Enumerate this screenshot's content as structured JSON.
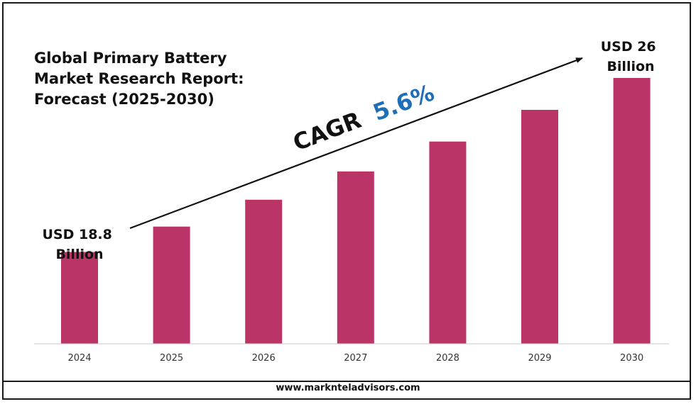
{
  "chart_data": {
    "type": "bar",
    "title": "Global Primary Battery Market Research Report: Forecast (2025-2030)",
    "categories": [
      "2024",
      "2025",
      "2026",
      "2027",
      "2028",
      "2029",
      "2030"
    ],
    "values": [
      18.8,
      19.85,
      20.96,
      22.13,
      23.37,
      24.68,
      26.0
    ],
    "unit": "USD Billion",
    "ylim": [
      15.0,
      26.0
    ],
    "bar_color": "#bb3468",
    "grid": false,
    "annotations": {
      "cagr_label": "CAGR",
      "cagr_value": "5.6%",
      "cagr_value_color": "#1f6fb8",
      "start_label_line1": "USD 18.8",
      "start_label_line2": "Billion",
      "end_label_line1": "USD 26",
      "end_label_line2": "Billion"
    }
  },
  "footer": {
    "website": "www.marknteladvisors.com"
  }
}
